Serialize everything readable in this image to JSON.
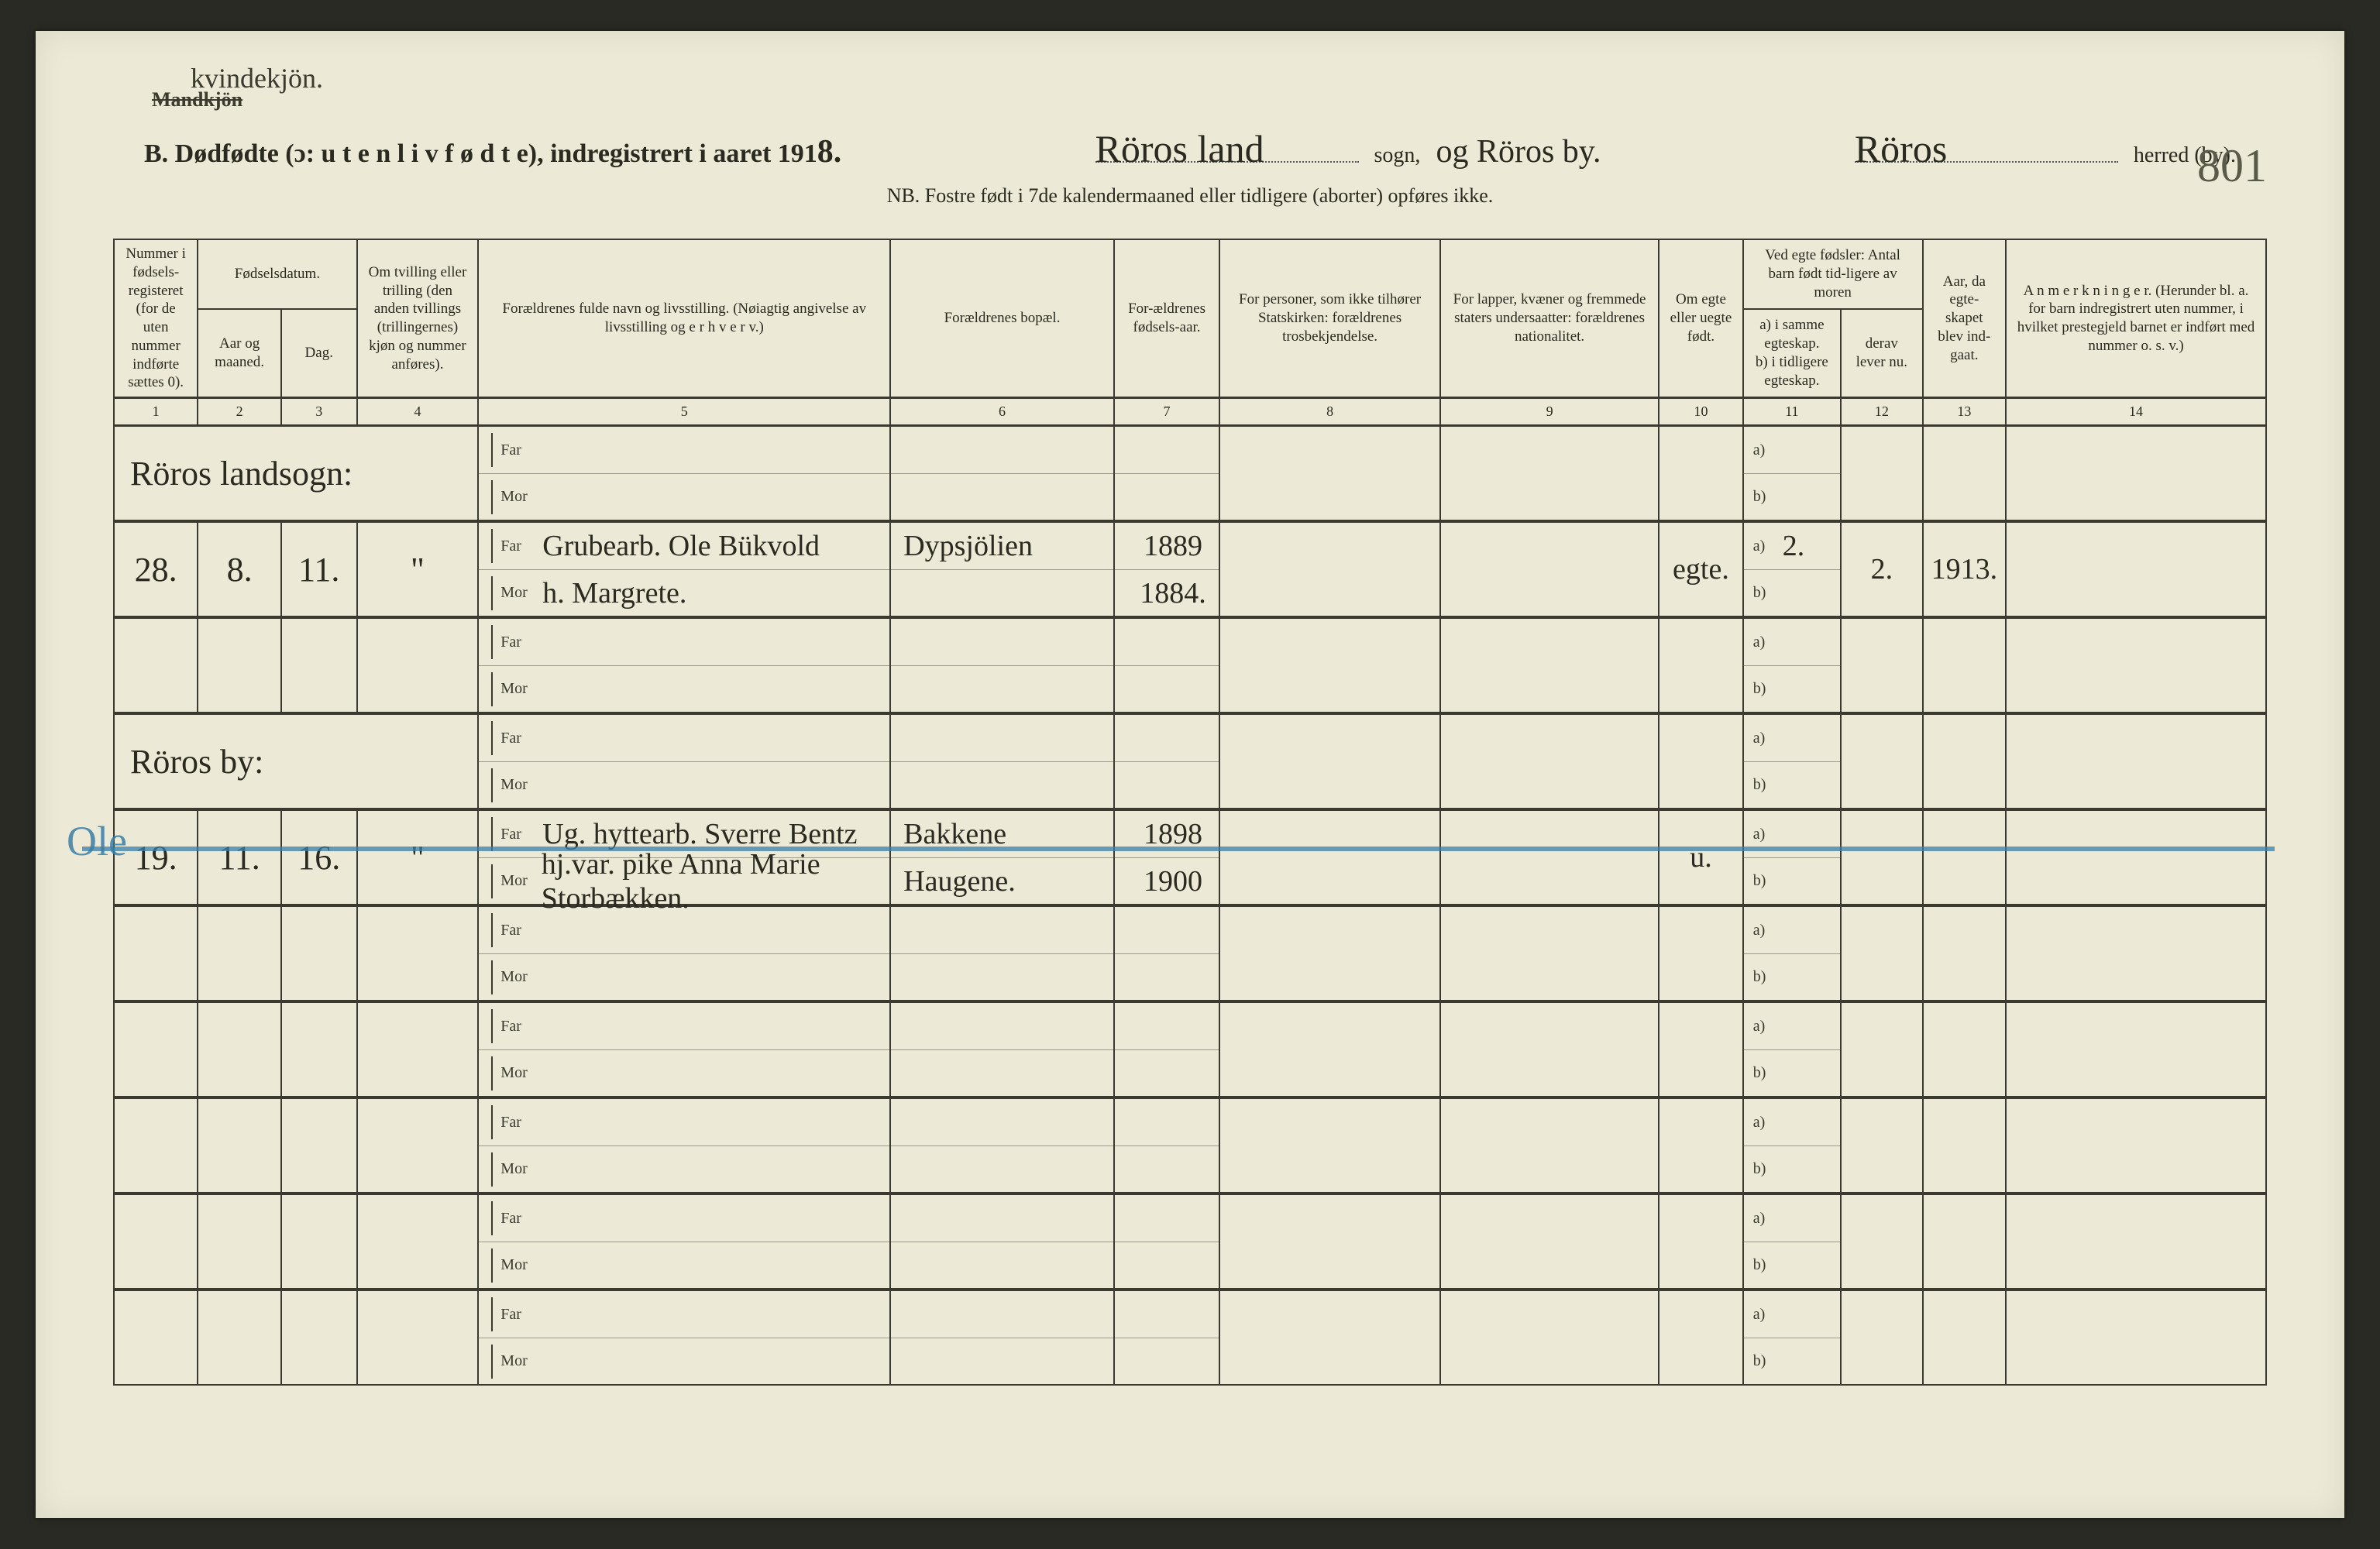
{
  "header": {
    "handwritten_correction": "kvindekjön.",
    "strikethrough": "Mandkjön",
    "title_prefix": "B.  Dødfødte (ɔ:  u t e n  l i v  f ø d t e),  indregistrert i aaret 191",
    "title_year_digit": "8.",
    "sogn_value": "Röros land",
    "sogn_label": "sogn,",
    "sogn_value2": "og Röros by.",
    "herred_value": "Röros",
    "herred_label": "herred (by).",
    "nb": "NB.   Fostre født i 7de kalendermaaned eller tidligere (aborter) opføres ikke.",
    "page_number": "801"
  },
  "columns": {
    "h1": "Nummer i fødsels-registeret (for de uten nummer indførte sættes 0).",
    "h2_top": "Fødselsdatum.",
    "h2a": "Aar og maaned.",
    "h2b": "Dag.",
    "h4": "Om tvilling eller trilling (den anden tvillings (trillingernes) kjøn og nummer anføres).",
    "h5": "Forældrenes fulde navn og livsstilling.\n(Nøiagtig angivelse av livsstilling og e r h v e r v.)",
    "h6": "Forældrenes bopæl.",
    "h7": "For-ældrenes fødsels-aar.",
    "h8": "For personer, som ikke tilhører Statskirken: forældrenes trosbekjendelse.",
    "h9": "For lapper, kvæner og fremmede staters undersaatter: forældrenes nationalitet.",
    "h10": "Om egte eller uegte født.",
    "h11_top": "Ved egte fødsler: Antal barn født tid-ligere av moren",
    "h11a": "a) i samme egteskap.",
    "h11b": "b) i tidligere egteskap.",
    "h12_top": "derav lever nu.",
    "h12a": "derav lever nu.",
    "h13": "Aar, da egte-skapet blev ind-gaat.",
    "h14": "A n m e r k n i n g e r.\n(Herunder bl. a. for barn indregistrert uten nummer, i hvilket prestegjeld barnet er indført med nummer o. s. v.)",
    "nums": [
      "1",
      "2",
      "3",
      "4",
      "5",
      "6",
      "7",
      "8",
      "9",
      "10",
      "11",
      "12",
      "13",
      "14"
    ]
  },
  "farmor": {
    "far": "Far",
    "mor": "Mor",
    "a": "a)",
    "b": "b)"
  },
  "rows": [
    {
      "section_label": "Röros landsogn:",
      "c1": "",
      "c2": "",
      "c3": "",
      "c4": "",
      "far": "",
      "mor": "",
      "far6": "",
      "mor6": "",
      "far7": "",
      "mor7": "",
      "c10": "",
      "a11": "",
      "b11": "",
      "c12": "",
      "c13": ""
    },
    {
      "c1": "28.",
      "c2": "8.",
      "c3": "11.",
      "c4": "\"",
      "far": "Grubearb. Ole Bükvold",
      "mor": "h. Margrete.",
      "far6": "Dypsjölien",
      "mor6": "",
      "far7": "1889",
      "mor7": "1884.",
      "c10": "egte.",
      "a11": "2.",
      "b11": "",
      "c12": "2.",
      "c13": "1913."
    },
    {
      "blank": true
    },
    {
      "section_label": "Röros by:",
      "c1": "",
      "c2": "",
      "c3": "",
      "c4": "",
      "far": "",
      "mor": "",
      "far6": "",
      "mor6": "",
      "far7": "",
      "mor7": "",
      "c10": "",
      "a11": "",
      "b11": "",
      "c12": "",
      "c13": ""
    },
    {
      "c1": "19.",
      "c2": "11.",
      "c3": "16.",
      "c4": "\"",
      "far": "Ug. hyttearb. Sverre Bentz",
      "mor": "hj.var. pike Anna Marie Storbækken.",
      "far6": "Bakkene",
      "mor6": "Haugene.",
      "far7": "1898",
      "mor7": "1900",
      "c10": "u.",
      "a11": "",
      "b11": "",
      "c12": "",
      "c13": "",
      "blue_strike": true,
      "blue_annot": "Ole"
    },
    {
      "blank": true
    },
    {
      "blank": true
    },
    {
      "blank": true
    },
    {
      "blank": true
    },
    {
      "blank": true
    }
  ],
  "style": {
    "paper_bg": "#ece9d6",
    "ink": "#2a2a20",
    "rule": "#3a3a30",
    "blue_pencil": "#3a7fa8",
    "cursive_font": "Brush Script MT",
    "title_fontsize_pt": 26,
    "header_fontsize_pt": 14,
    "entry_fontsize_pt": 32
  }
}
